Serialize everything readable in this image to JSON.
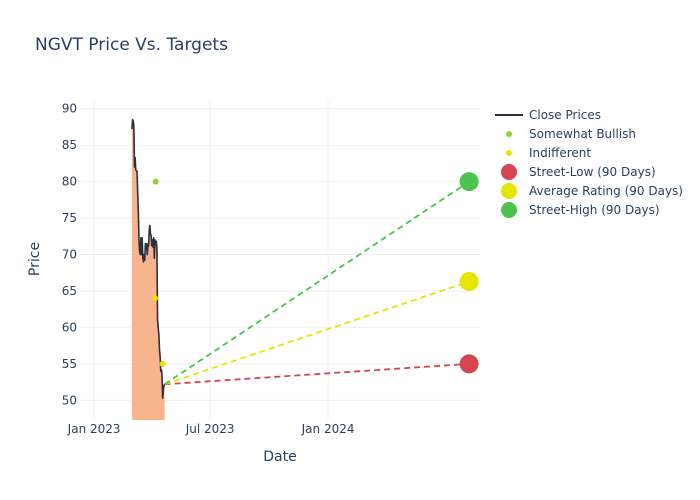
{
  "chart_data": {
    "type": "line",
    "title": "NGVT Price Vs. Targets",
    "xlabel": "Date",
    "ylabel": "Price",
    "xlim": [
      "2022-12-10",
      "2024-08-25"
    ],
    "ylim": [
      47.3,
      91.2
    ],
    "x_ticks": [
      {
        "date": "2023-01-01",
        "label": "Jan 2023"
      },
      {
        "date": "2023-07-01",
        "label": "Jul 2023"
      },
      {
        "date": "2024-01-01",
        "label": "Jan 2024"
      }
    ],
    "y_ticks": [
      50,
      55,
      60,
      65,
      70,
      75,
      80,
      85,
      90
    ],
    "grid": true,
    "legend_position": "top-right",
    "colors": {
      "close": "#2a3040",
      "fill": "#f8b48c",
      "somewhat_bullish": "#9acd32",
      "indifferent": "#e5e500",
      "street_low": "#d64550",
      "average": "#e5e500",
      "street_high": "#4cc34c"
    },
    "close_prices": [
      [
        "2023-03-01",
        87.2
      ],
      [
        "2023-03-02",
        88.5
      ],
      [
        "2023-03-03",
        88.3
      ],
      [
        "2023-03-04",
        87.6
      ],
      [
        "2023-03-05",
        82.0
      ],
      [
        "2023-03-06",
        83.3
      ],
      [
        "2023-03-07",
        81.6
      ],
      [
        "2023-03-09",
        81.4
      ],
      [
        "2023-03-10",
        78.5
      ],
      [
        "2023-03-11",
        76.0
      ],
      [
        "2023-03-12",
        72.0
      ],
      [
        "2023-03-13",
        70.5
      ],
      [
        "2023-03-14",
        70.0
      ],
      [
        "2023-03-15",
        72.3
      ],
      [
        "2023-03-16",
        70.0
      ],
      [
        "2023-03-17",
        72.3
      ],
      [
        "2023-03-18",
        69.6
      ],
      [
        "2023-03-19",
        69.0
      ],
      [
        "2023-03-20",
        70.0
      ],
      [
        "2023-03-21",
        69.2
      ],
      [
        "2023-03-22",
        71.5
      ],
      [
        "2023-03-23",
        71.5
      ],
      [
        "2023-03-24",
        71.0
      ],
      [
        "2023-03-25",
        70.0
      ],
      [
        "2023-03-26",
        71.5
      ],
      [
        "2023-03-27",
        71.2
      ],
      [
        "2023-03-28",
        73.3
      ],
      [
        "2023-03-29",
        74.0
      ],
      [
        "2023-03-30",
        72.8
      ],
      [
        "2023-03-31",
        72.6
      ],
      [
        "2023-04-01",
        71.2
      ],
      [
        "2023-04-02",
        72.0
      ],
      [
        "2023-04-03",
        71.0
      ],
      [
        "2023-04-04",
        72.3
      ],
      [
        "2023-04-05",
        69.5
      ],
      [
        "2023-04-06",
        72.0
      ],
      [
        "2023-04-07",
        71.5
      ],
      [
        "2023-04-08",
        71.8
      ],
      [
        "2023-04-09",
        70.8
      ],
      [
        "2023-04-10",
        61.0
      ],
      [
        "2023-04-11",
        60.0
      ],
      [
        "2023-04-12",
        59.0
      ],
      [
        "2023-04-13",
        57.0
      ],
      [
        "2023-04-14",
        56.0
      ],
      [
        "2023-04-15",
        54.0
      ],
      [
        "2023-04-16",
        54.2
      ],
      [
        "2023-04-17",
        53.3
      ],
      [
        "2023-04-18",
        50.3
      ],
      [
        "2023-04-19",
        51.5
      ],
      [
        "2023-04-20",
        52.0
      ],
      [
        "2023-04-21",
        52.2
      ]
    ],
    "somewhat_bullish": [
      [
        "2023-04-07",
        80.0
      ]
    ],
    "indifferent": [
      [
        "2023-04-06",
        64.0
      ],
      [
        "2023-04-18",
        55.0
      ]
    ],
    "targets_end_date": "2024-08-08",
    "targets_start": [
      "2023-04-21",
      52.2
    ],
    "street_low": 55.0,
    "average_rating": 66.3,
    "street_high": 80.0,
    "legend": [
      {
        "key": "close",
        "label": "Close Prices",
        "symbol": "line"
      },
      {
        "key": "somewhat_bullish",
        "label": "Somewhat Bullish",
        "symbol": "small-dot"
      },
      {
        "key": "indifferent",
        "label": "Indifferent",
        "symbol": "small-dot"
      },
      {
        "key": "street_low",
        "label": "Street-Low (90 Days)",
        "symbol": "big-dot"
      },
      {
        "key": "average",
        "label": "Average Rating (90 Days)",
        "symbol": "big-dot"
      },
      {
        "key": "street_high",
        "label": "Street-High (90 Days)",
        "symbol": "big-dot"
      }
    ]
  }
}
